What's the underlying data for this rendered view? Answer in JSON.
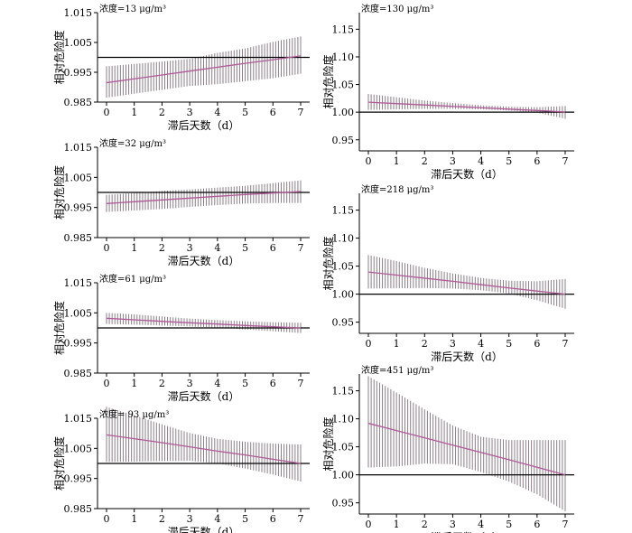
{
  "chart_data": [
    {
      "type": "line",
      "label": "浓度=13 μg/m³",
      "xlabel": "滞后天数（d）",
      "ylabel": "相对危险度",
      "xlim": [
        0,
        7
      ],
      "ylim": [
        0.985,
        1.015
      ],
      "xticks": [
        "0",
        "1",
        "2",
        "3",
        "4",
        "5",
        "6",
        "7"
      ],
      "yticks": [
        "0.985",
        "0.995",
        "1.005",
        "1.015"
      ],
      "reference_line": 1.0,
      "series": [
        {
          "x": [
            0,
            1,
            2,
            3,
            4,
            5,
            6,
            7
          ],
          "values": [
            0.9915,
            0.9928,
            0.9941,
            0.9954,
            0.9967,
            0.998,
            0.9992,
            1.0005
          ],
          "lower": [
            0.9865,
            0.9878,
            0.9891,
            0.9904,
            0.991,
            0.992,
            0.993,
            0.9945
          ],
          "upper": [
            0.997,
            0.9978,
            0.9986,
            0.9995,
            1.0015,
            1.003,
            1.0052,
            1.007
          ]
        }
      ]
    },
    {
      "type": "line",
      "label": "浓度=32 μg/m³",
      "xlabel": "滞后天数（d）",
      "ylabel": "相对危险度",
      "xlim": [
        0,
        7
      ],
      "ylim": [
        0.985,
        1.015
      ],
      "xticks": [
        "0",
        "1",
        "2",
        "3",
        "4",
        "5",
        "6",
        "7"
      ],
      "yticks": [
        "0.985",
        "0.995",
        "1.005",
        "1.015"
      ],
      "reference_line": 1.0,
      "series": [
        {
          "x": [
            0,
            1,
            2,
            3,
            4,
            5,
            6,
            7
          ],
          "values": [
            0.9963,
            0.9969,
            0.9975,
            0.9981,
            0.9987,
            0.9993,
            0.9998,
            1.0003
          ],
          "lower": [
            0.9935,
            0.994,
            0.9945,
            0.9952,
            0.9958,
            0.9963,
            0.9965,
            0.9965
          ],
          "upper": [
            0.9992,
            0.9998,
            1.0005,
            1.001,
            1.0016,
            1.0022,
            1.0031,
            1.004
          ]
        }
      ]
    },
    {
      "type": "line",
      "label": "浓度=61 μg/m³",
      "xlabel": "滞后天数（d）",
      "ylabel": "相对危险度",
      "xlim": [
        0,
        7
      ],
      "ylim": [
        0.985,
        1.015
      ],
      "xticks": [
        "0",
        "1",
        "2",
        "3",
        "4",
        "5",
        "6",
        "7"
      ],
      "yticks": [
        "0.985",
        "0.995",
        "1.005",
        "1.015"
      ],
      "reference_line": 1.0,
      "series": [
        {
          "x": [
            0,
            1,
            2,
            3,
            4,
            5,
            6,
            7
          ],
          "values": [
            1.0032,
            1.0027,
            1.0022,
            1.0017,
            1.0013,
            1.0008,
            1.0004,
            1.0
          ],
          "lower": [
            1.0013,
            1.0011,
            1.0008,
            1.0005,
            1.0001,
            0.9995,
            0.9989,
            0.9983
          ],
          "upper": [
            1.005,
            1.0045,
            1.0038,
            1.0031,
            1.0026,
            1.0022,
            1.0019,
            1.0017
          ]
        }
      ]
    },
    {
      "type": "line",
      "label": "浓度= 93 μg/m³",
      "xlabel": "滞后天数（d）",
      "ylabel": "相对危险度",
      "xlim": [
        0,
        7
      ],
      "ylim": [
        0.985,
        1.015
      ],
      "xticks": [
        "0",
        "1",
        "2",
        "3",
        "4",
        "5",
        "6",
        "7"
      ],
      "yticks": [
        "0.985",
        "0.995",
        "1.005",
        "1.015"
      ],
      "reference_line": 1.0,
      "series": [
        {
          "x": [
            0,
            1,
            2,
            3,
            4,
            5,
            6,
            7
          ],
          "values": [
            1.0095,
            1.0082,
            1.0069,
            1.0055,
            1.0041,
            1.0028,
            1.0014,
            1.0
          ],
          "lower": [
            1.0005,
            1.0006,
            1.0008,
            1.0009,
            1.0,
            0.9983,
            0.9963,
            0.994
          ],
          "upper": [
            1.0188,
            1.016,
            1.013,
            1.0101,
            1.0082,
            1.0072,
            1.0066,
            1.0063
          ]
        }
      ]
    },
    {
      "type": "line",
      "label": "浓度=130 μg/m³",
      "xlabel": "滞后天数（d）",
      "ylabel": "相对危险度",
      "xlim": [
        0,
        7
      ],
      "ylim": [
        0.93,
        1.18
      ],
      "xticks": [
        "0",
        "1",
        "2",
        "3",
        "4",
        "5",
        "6",
        "7"
      ],
      "yticks": [
        "0.95",
        "1.00",
        "1.05",
        "1.10",
        "1.15"
      ],
      "reference_line": 1.0,
      "series": [
        {
          "x": [
            0,
            1,
            2,
            3,
            4,
            5,
            6,
            7
          ],
          "values": [
            1.018,
            1.0155,
            1.013,
            1.0105,
            1.008,
            1.0055,
            1.003,
            1.0005
          ],
          "lower": [
            1.004,
            1.005,
            1.006,
            1.006,
            1.005,
            1.003,
            0.999,
            0.988
          ],
          "upper": [
            1.033,
            1.027,
            1.021,
            1.0165,
            1.0125,
            1.01,
            1.009,
            1.011
          ]
        }
      ]
    },
    {
      "type": "line",
      "label": "浓度=218 μg/m³",
      "xlabel": "滞后天数（d）",
      "ylabel": "相对危险度",
      "xlim": [
        0,
        7
      ],
      "ylim": [
        0.93,
        1.18
      ],
      "xticks": [
        "0",
        "1",
        "2",
        "3",
        "4",
        "5",
        "6",
        "7"
      ],
      "yticks": [
        "0.95",
        "1.00",
        "1.05",
        "1.10",
        "1.15"
      ],
      "reference_line": 1.0,
      "series": [
        {
          "x": [
            0,
            1,
            2,
            3,
            4,
            5,
            6,
            7
          ],
          "values": [
            1.0395,
            1.034,
            1.0285,
            1.023,
            1.017,
            1.011,
            1.0055,
            1.0
          ],
          "lower": [
            1.01,
            1.0105,
            1.011,
            1.01,
            1.007,
            1.001,
            0.989,
            0.974
          ],
          "upper": [
            1.07,
            1.059,
            1.047,
            1.037,
            1.029,
            1.024,
            1.023,
            1.027
          ]
        }
      ]
    },
    {
      "type": "line",
      "label": "浓度=451 μg/m³",
      "xlabel": "滞后天数（d）",
      "ylabel": "相对危险度",
      "xlim": [
        0,
        7
      ],
      "ylim": [
        0.93,
        1.18
      ],
      "xticks": [
        "0",
        "1",
        "2",
        "3",
        "4",
        "5",
        "6",
        "7"
      ],
      "yticks": [
        "0.95",
        "1.00",
        "1.05",
        "1.10",
        "1.15"
      ],
      "reference_line": 1.0,
      "series": [
        {
          "x": [
            0,
            1,
            2,
            3,
            4,
            5,
            6,
            7
          ],
          "values": [
            1.092,
            1.079,
            1.066,
            1.053,
            1.04,
            1.027,
            1.0135,
            1.0
          ],
          "lower": [
            1.013,
            1.015,
            1.02,
            1.019,
            1.005,
            0.988,
            0.965,
            0.935
          ],
          "upper": [
            1.176,
            1.147,
            1.117,
            1.088,
            1.068,
            1.062,
            1.062,
            1.062
          ]
        }
      ]
    }
  ]
}
